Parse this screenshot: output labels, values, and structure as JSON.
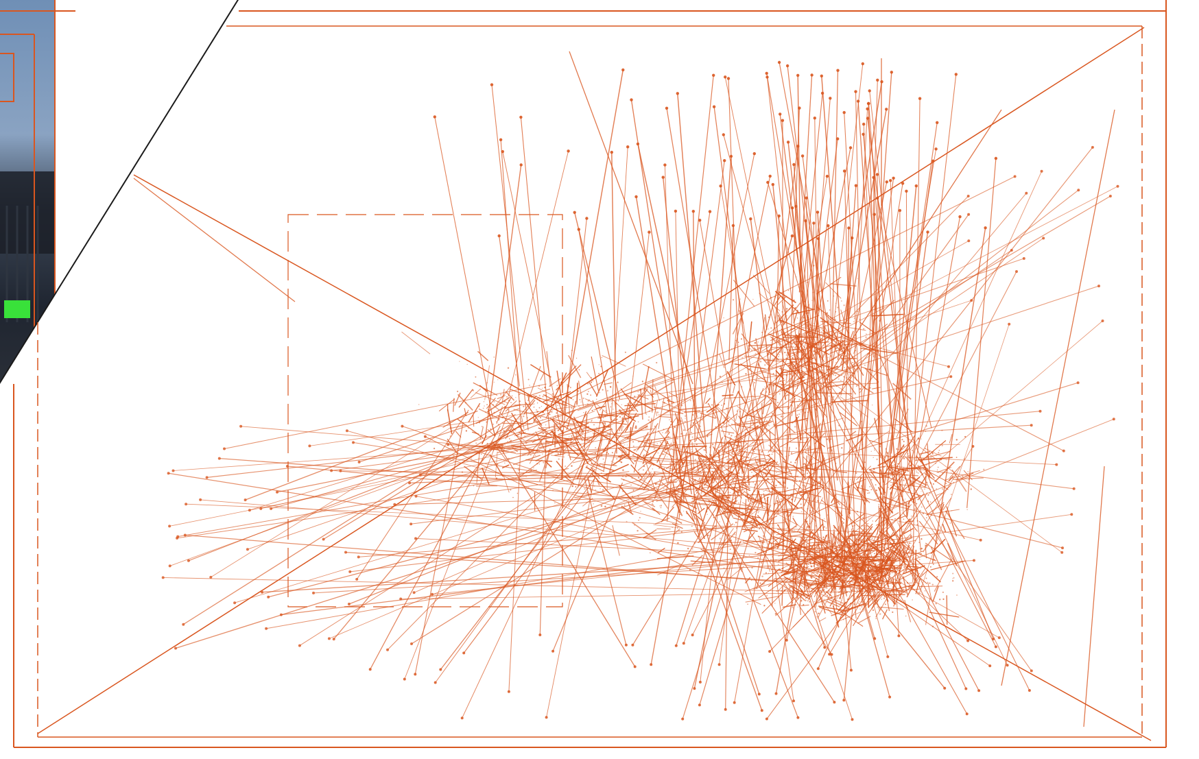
{
  "inset": {
    "badge_text": "",
    "badge_color": "#39e13a"
  },
  "colors": {
    "background": "#f4f4f2",
    "panel": "#ffffff",
    "line": "#d9561f",
    "divider": "#1a1a1a"
  },
  "graph": {
    "description_icon": "dense-line-network-icon"
  }
}
